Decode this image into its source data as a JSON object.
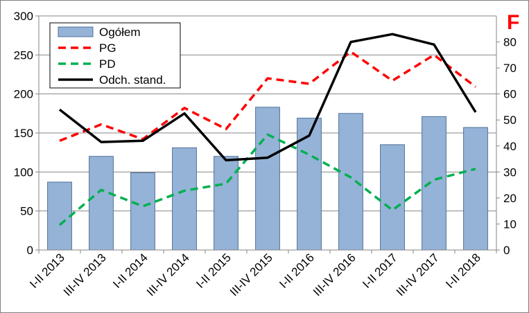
{
  "chart_data": {
    "type": "bar",
    "categories": [
      "I-II 2013",
      "III-IV 2013",
      "I-II 2014",
      "III-IV 2014",
      "I-II 2015",
      "III-IV 2015",
      "I-II 2016",
      "III-IV 2016",
      "I-II 2017",
      "III-IV 2017",
      "I-II 2018"
    ],
    "left_axis": {
      "ylim": [
        0,
        300
      ],
      "ticks": [
        "0",
        "50",
        "100",
        "150",
        "200",
        "250",
        "300"
      ]
    },
    "right_axis": {
      "label": "F",
      "label_color": "#ff0000",
      "ylim": [
        0,
        90
      ],
      "ticks": [
        "0",
        "10",
        "20",
        "30",
        "40",
        "50",
        "60",
        "70",
        "80"
      ]
    },
    "grid": true,
    "legend_position": "top-left",
    "series": [
      {
        "name": "Ogółem",
        "kind": "bar",
        "axis": "left",
        "color": "#95b3d7",
        "values": [
          87,
          120,
          99,
          131,
          120,
          183,
          169,
          175,
          135,
          171,
          157
        ]
      },
      {
        "name": "PG",
        "kind": "line",
        "axis": "left",
        "style": "dashed",
        "color": "#ff0000",
        "values": [
          140,
          161,
          142,
          182,
          155,
          220,
          213,
          254,
          217,
          250,
          209
        ]
      },
      {
        "name": "PD",
        "kind": "line",
        "axis": "left",
        "style": "dashed",
        "color": "#00b050",
        "values": [
          32,
          77,
          56,
          76,
          85,
          148,
          122,
          93,
          51,
          90,
          104
        ]
      },
      {
        "name": "Odch. stand.",
        "kind": "line",
        "axis": "right",
        "style": "solid",
        "color": "#000000",
        "values": [
          54,
          41.5,
          42,
          52.5,
          34.5,
          35.5,
          44,
          80,
          83,
          79,
          53
        ]
      }
    ]
  }
}
